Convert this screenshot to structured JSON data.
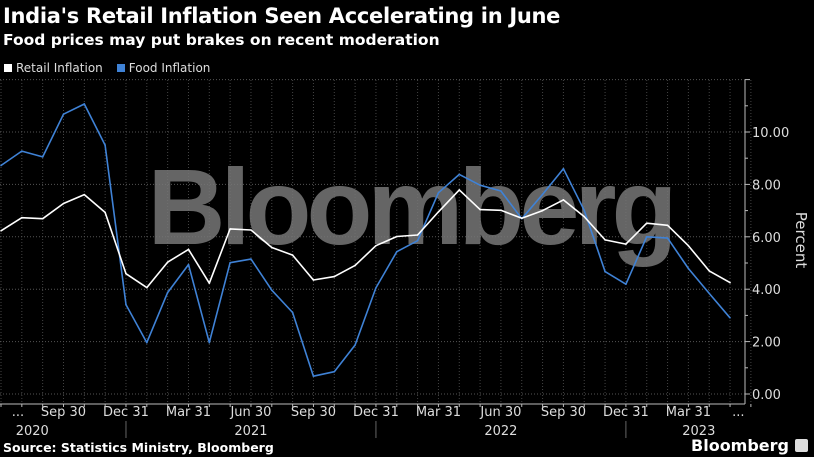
{
  "title": "India's Retail Inflation Seen Accelerating in June",
  "subtitle": "Food prices may put brakes on recent moderation",
  "source": "Source: Statistics Ministry, Bloomberg",
  "brand": "Bloomberg",
  "watermark": "Bloomberg",
  "chart_data": {
    "type": "line",
    "ylabel": "Percent",
    "ylim": [
      0,
      12
    ],
    "yticks": [
      "0.00",
      "2.00",
      "4.00",
      "6.00",
      "8.00",
      "10.00"
    ],
    "grid": true,
    "legend_position": "top-left",
    "x": [
      "2020-06",
      "2020-07",
      "2020-08",
      "2020-09",
      "2020-10",
      "2020-11",
      "2020-12",
      "2021-01",
      "2021-02",
      "2021-03",
      "2021-04",
      "2021-05",
      "2021-06",
      "2021-07",
      "2021-08",
      "2021-09",
      "2021-10",
      "2021-11",
      "2021-12",
      "2022-01",
      "2022-02",
      "2022-03",
      "2022-04",
      "2022-05",
      "2022-06",
      "2022-07",
      "2022-08",
      "2022-09",
      "2022-10",
      "2022-11",
      "2022-12",
      "2023-01",
      "2023-02",
      "2023-03",
      "2023-04",
      "2023-05"
    ],
    "xtick_labels": [
      "...",
      "Sep 30",
      "Dec 31",
      "Mar 31",
      "Jun 30",
      "Sep 30",
      "Dec 31",
      "Mar 31",
      "Jun 30",
      "Sep 30",
      "Dec 31",
      "Mar 31",
      "..."
    ],
    "year_labels": [
      "2020",
      "2021",
      "2022",
      "2023"
    ],
    "series": [
      {
        "name": "Retail Inflation",
        "color": "#ffffff",
        "values": [
          6.23,
          6.73,
          6.69,
          7.27,
          7.61,
          6.93,
          4.59,
          4.06,
          5.03,
          5.52,
          4.23,
          6.3,
          6.26,
          5.59,
          5.3,
          4.35,
          4.48,
          4.91,
          5.66,
          6.01,
          6.07,
          6.95,
          7.79,
          7.04,
          7.01,
          6.71,
          7.0,
          7.41,
          6.77,
          5.88,
          5.72,
          6.52,
          6.44,
          5.66,
          4.7,
          4.25
        ]
      },
      {
        "name": "Food Inflation",
        "color": "#3f82d6",
        "values": [
          8.72,
          9.27,
          9.05,
          10.68,
          11.07,
          9.5,
          3.41,
          1.96,
          3.87,
          4.94,
          1.96,
          5.01,
          5.15,
          3.96,
          3.11,
          0.68,
          0.85,
          1.87,
          4.05,
          5.43,
          5.85,
          7.68,
          8.38,
          7.97,
          7.75,
          6.69,
          7.62,
          8.6,
          7.01,
          4.67,
          4.19,
          6.0,
          5.95,
          4.79,
          3.84,
          2.91
        ]
      }
    ]
  }
}
